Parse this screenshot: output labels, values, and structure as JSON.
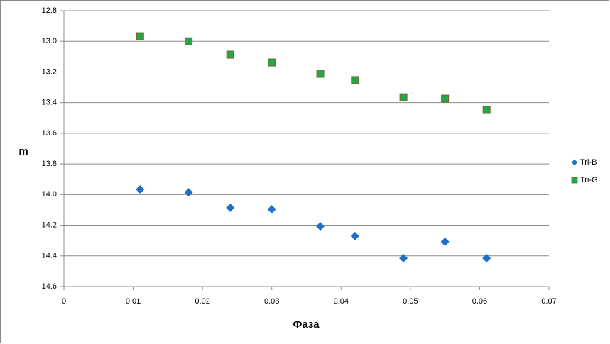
{
  "chart_data": {
    "type": "scatter",
    "x_label": "Фаза",
    "y_label": "m",
    "xlim": [
      0,
      0.07
    ],
    "xticks": [
      0,
      0.01,
      0.02,
      0.03,
      0.04,
      0.05,
      0.06,
      0.07
    ],
    "ylim": [
      12.8,
      14.6
    ],
    "y_inverted": true,
    "yticks": [
      12.8,
      {
        "value": 13,
        "label": "13.0"
      },
      13.2,
      13.4,
      13.6,
      13.8,
      {
        "value": 14,
        "label": "14.0"
      },
      14.2,
      14.4,
      14.6
    ],
    "grid": true,
    "legend": "right",
    "series": [
      {
        "name": "Tri-B",
        "color": "#1f6fc4",
        "marker": "diamond",
        "x": [
          0.011,
          0.018,
          0.024,
          0.03,
          0.037,
          0.042,
          0.049,
          0.055,
          0.061
        ],
        "values": [
          13.966,
          13.985,
          14.086,
          14.096,
          14.207,
          14.271,
          14.415,
          14.308,
          14.415
        ]
      },
      {
        "name": "Tri-G",
        "color": "#22a84a",
        "marker": "square",
        "x": [
          0.011,
          0.018,
          0.024,
          0.03,
          0.037,
          0.042,
          0.049,
          0.055,
          0.061
        ],
        "values": [
          12.967,
          13.0,
          13.087,
          13.138,
          13.212,
          13.253,
          13.365,
          13.374,
          13.448
        ]
      }
    ]
  }
}
